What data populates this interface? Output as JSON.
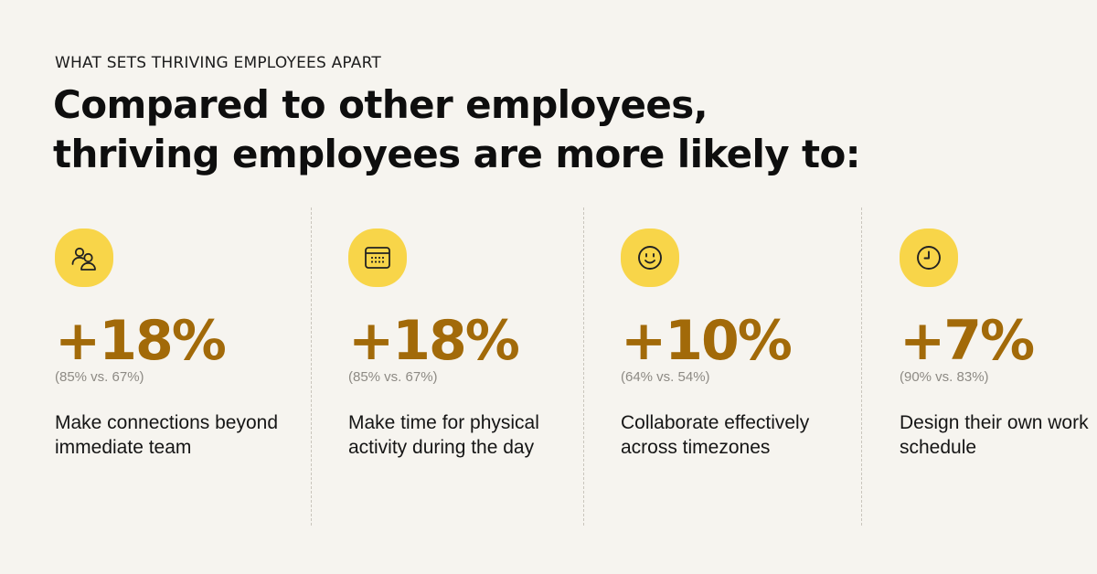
{
  "header": {
    "eyebrow": "WHAT SETS THRIVING EMPLOYEES APART",
    "title_line1": "Compared to other employees,",
    "title_line2": "thriving employees are more likely to:"
  },
  "colors": {
    "background": "#f6f4ef",
    "accent_yellow": "#f8d549",
    "percent_brown": "#a26a09",
    "comparison_gray": "#8d8a84"
  },
  "stats": [
    {
      "icon": "people-icon",
      "value": "+18%",
      "comparison": "(85% vs. 67%)",
      "description": "Make connections beyond immediate team"
    },
    {
      "icon": "calendar-icon",
      "value": "+18%",
      "comparison": "(85% vs. 67%)",
      "description": "Make time for physical activity during the day"
    },
    {
      "icon": "smiley-icon",
      "value": "+10%",
      "comparison": "(64% vs. 54%)",
      "description": "Collaborate effectively across timezones"
    },
    {
      "icon": "clock-icon",
      "value": "+7%",
      "comparison": "(90% vs. 83%)",
      "description": "Design their own work schedule"
    }
  ]
}
